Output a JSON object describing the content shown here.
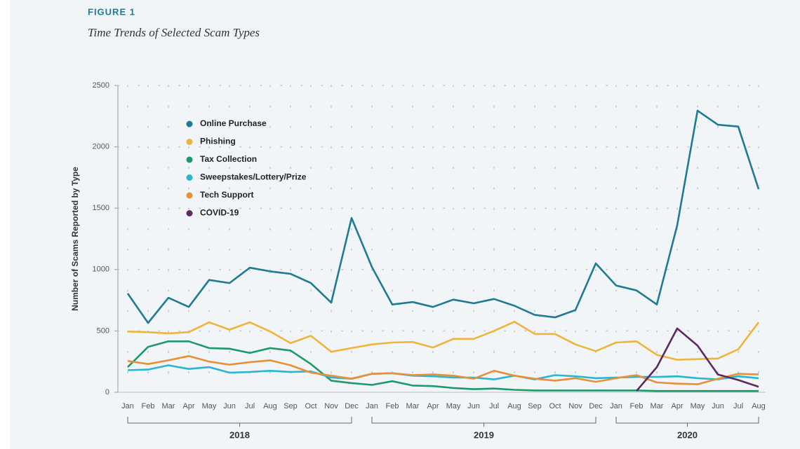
{
  "chart_data": {
    "type": "line",
    "figure_label": "FIGURE 1",
    "title": "Time Trends of Selected Scam Types",
    "y_label": "Number of Scams Reported by Type",
    "categories": [
      "Jan",
      "Feb",
      "Mar",
      "Apr",
      "May",
      "Jun",
      "Jul",
      "Aug",
      "Sep",
      "Oct",
      "Nov",
      "Dec",
      "Jan",
      "Feb",
      "Mar",
      "Apr",
      "May",
      "Jun",
      "Jul",
      "Aug",
      "Sep",
      "Oct",
      "Nov",
      "Dec",
      "Jan",
      "Feb",
      "Mar",
      "Apr",
      "May",
      "Jun",
      "Jul",
      "Aug"
    ],
    "year_groups": [
      "2018",
      "2019",
      "2020"
    ],
    "ylim": [
      0,
      2500
    ],
    "yticks": [
      0,
      500,
      1000,
      1500,
      2000,
      2500
    ],
    "grid": true,
    "legend": "upper left",
    "series": [
      {
        "name": "Online Purchase",
        "color": "#1f7a93",
        "values": [
          805,
          565,
          770,
          695,
          915,
          890,
          1015,
          985,
          965,
          890,
          730,
          1420,
          1020,
          715,
          735,
          695,
          755,
          725,
          760,
          705,
          630,
          610,
          670,
          1050,
          870,
          830,
          715,
          1360,
          2295,
          2180,
          2165,
          1655
        ]
      },
      {
        "name": "Phishing",
        "color": "#f0b43c",
        "values": [
          495,
          490,
          480,
          490,
          570,
          510,
          570,
          495,
          400,
          460,
          330,
          360,
          390,
          405,
          410,
          365,
          435,
          435,
          500,
          575,
          475,
          475,
          390,
          335,
          405,
          415,
          305,
          265,
          270,
          275,
          350,
          570
        ]
      },
      {
        "name": "Tax Collection",
        "color": "#1e9a6a",
        "values": [
          205,
          370,
          415,
          415,
          360,
          355,
          320,
          360,
          340,
          230,
          95,
          75,
          60,
          90,
          55,
          50,
          35,
          25,
          30,
          20,
          15,
          15,
          15,
          15,
          15,
          15,
          10,
          10,
          10,
          10,
          10,
          10
        ]
      },
      {
        "name": "Sweepstakes/Lottery/Prize",
        "color": "#29b6d1",
        "values": [
          180,
          185,
          220,
          190,
          205,
          160,
          165,
          175,
          165,
          170,
          120,
          110,
          150,
          155,
          135,
          130,
          120,
          120,
          105,
          135,
          105,
          140,
          130,
          115,
          120,
          125,
          125,
          130,
          115,
          105,
          130,
          115
        ]
      },
      {
        "name": "Tech Support",
        "color": "#e88f3a",
        "values": [
          255,
          230,
          260,
          295,
          250,
          225,
          245,
          260,
          220,
          160,
          135,
          110,
          150,
          155,
          140,
          145,
          135,
          110,
          175,
          135,
          110,
          95,
          115,
          85,
          115,
          140,
          80,
          70,
          65,
          110,
          150,
          145
        ]
      },
      {
        "name": "COVID-19",
        "color": "#5c2a5e",
        "values": [
          null,
          null,
          null,
          null,
          null,
          null,
          null,
          null,
          null,
          null,
          null,
          null,
          null,
          null,
          null,
          null,
          null,
          null,
          null,
          null,
          null,
          null,
          null,
          null,
          null,
          10,
          205,
          520,
          380,
          145,
          100,
          45
        ]
      }
    ]
  }
}
